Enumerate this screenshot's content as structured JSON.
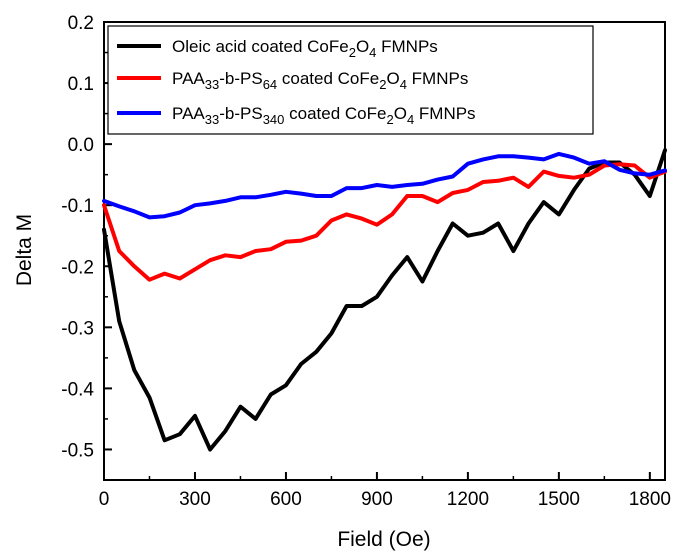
{
  "chart_data": {
    "type": "line",
    "xlabel": "Field (Oe)",
    "ylabel": "Delta M",
    "xlim": [
      0,
      1850
    ],
    "ylim": [
      -0.55,
      0.2
    ],
    "xticks": [
      0,
      300,
      600,
      900,
      1200,
      1500,
      1800
    ],
    "xtick_labels": [
      "0",
      "300",
      "600",
      "900",
      "1200",
      "1500",
      "1800"
    ],
    "yticks": [
      -0.5,
      -0.4,
      -0.3,
      -0.2,
      -0.1,
      0.0,
      0.1,
      0.2
    ],
    "ytick_labels": [
      "-0.5",
      "-0.4",
      "-0.3",
      "-0.2",
      "-0.1",
      "0.0",
      "0.1",
      "0.2"
    ],
    "grid": false,
    "legend_position": "top-right",
    "series": [
      {
        "legend": [
          {
            "text": "Oleic acid coated CoFe",
            "shift": 0
          },
          {
            "text": "2",
            "shift": "sub"
          },
          {
            "text": "O",
            "shift": 0
          },
          {
            "text": "4",
            "shift": "sub"
          },
          {
            "text": " FMNPs",
            "shift": 0
          }
        ],
        "color": "#000000",
        "x": [
          0,
          50,
          100,
          150,
          200,
          250,
          300,
          350,
          400,
          450,
          500,
          550,
          600,
          650,
          700,
          750,
          800,
          850,
          900,
          950,
          1000,
          1050,
          1100,
          1150,
          1200,
          1250,
          1300,
          1350,
          1400,
          1450,
          1500,
          1550,
          1600,
          1650,
          1700,
          1750,
          1800,
          1850
        ],
        "y": [
          -0.14,
          -0.29,
          -0.37,
          -0.415,
          -0.485,
          -0.475,
          -0.445,
          -0.5,
          -0.47,
          -0.43,
          -0.45,
          -0.41,
          -0.395,
          -0.36,
          -0.34,
          -0.31,
          -0.265,
          -0.265,
          -0.25,
          -0.215,
          -0.185,
          -0.225,
          -0.175,
          -0.13,
          -0.15,
          -0.145,
          -0.13,
          -0.175,
          -0.13,
          -0.095,
          -0.115,
          -0.075,
          -0.04,
          -0.03,
          -0.03,
          -0.05,
          -0.085,
          -0.01
        ]
      },
      {
        "legend": [
          {
            "text": "PAA",
            "shift": 0
          },
          {
            "text": "33",
            "shift": "sub"
          },
          {
            "text": "-b-PS",
            "shift": 0
          },
          {
            "text": "64",
            "shift": "sub"
          },
          {
            "text": " coated CoFe",
            "shift": 0
          },
          {
            "text": "2",
            "shift": "sub"
          },
          {
            "text": "O",
            "shift": 0
          },
          {
            "text": "4",
            "shift": "sub"
          },
          {
            "text": " FMNPs",
            "shift": 0
          }
        ],
        "color": "#ff0000",
        "x": [
          0,
          50,
          100,
          150,
          200,
          250,
          300,
          350,
          400,
          450,
          500,
          550,
          600,
          650,
          700,
          750,
          800,
          850,
          900,
          950,
          1000,
          1050,
          1100,
          1150,
          1200,
          1250,
          1300,
          1350,
          1400,
          1450,
          1500,
          1550,
          1600,
          1650,
          1700,
          1750,
          1800,
          1850
        ],
        "y": [
          -0.1,
          -0.175,
          -0.2,
          -0.222,
          -0.212,
          -0.22,
          -0.205,
          -0.19,
          -0.182,
          -0.185,
          -0.175,
          -0.172,
          -0.16,
          -0.158,
          -0.15,
          -0.125,
          -0.115,
          -0.122,
          -0.132,
          -0.115,
          -0.085,
          -0.085,
          -0.095,
          -0.08,
          -0.075,
          -0.062,
          -0.06,
          -0.055,
          -0.07,
          -0.045,
          -0.052,
          -0.055,
          -0.05,
          -0.035,
          -0.033,
          -0.035,
          -0.055,
          -0.045
        ]
      },
      {
        "legend": [
          {
            "text": "PAA",
            "shift": 0
          },
          {
            "text": "33",
            "shift": "sub"
          },
          {
            "text": "-b-PS",
            "shift": 0
          },
          {
            "text": "340",
            "shift": "sub"
          },
          {
            "text": " coated CoFe",
            "shift": 0
          },
          {
            "text": "2",
            "shift": "sub"
          },
          {
            "text": "O",
            "shift": 0
          },
          {
            "text": "4",
            "shift": "sub"
          },
          {
            "text": " FMNPs",
            "shift": 0
          }
        ],
        "color": "#0000ff",
        "x": [
          0,
          50,
          100,
          150,
          200,
          250,
          300,
          350,
          400,
          450,
          500,
          550,
          600,
          650,
          700,
          750,
          800,
          850,
          900,
          950,
          1000,
          1050,
          1100,
          1150,
          1200,
          1250,
          1300,
          1350,
          1400,
          1450,
          1500,
          1550,
          1600,
          1650,
          1700,
          1750,
          1800,
          1850
        ],
        "y": [
          -0.093,
          -0.102,
          -0.11,
          -0.12,
          -0.118,
          -0.112,
          -0.1,
          -0.097,
          -0.093,
          -0.087,
          -0.087,
          -0.083,
          -0.078,
          -0.081,
          -0.085,
          -0.085,
          -0.072,
          -0.072,
          -0.067,
          -0.07,
          -0.067,
          -0.065,
          -0.058,
          -0.053,
          -0.032,
          -0.025,
          -0.02,
          -0.02,
          -0.022,
          -0.025,
          -0.016,
          -0.022,
          -0.032,
          -0.028,
          -0.042,
          -0.048,
          -0.05,
          -0.043
        ]
      }
    ]
  }
}
